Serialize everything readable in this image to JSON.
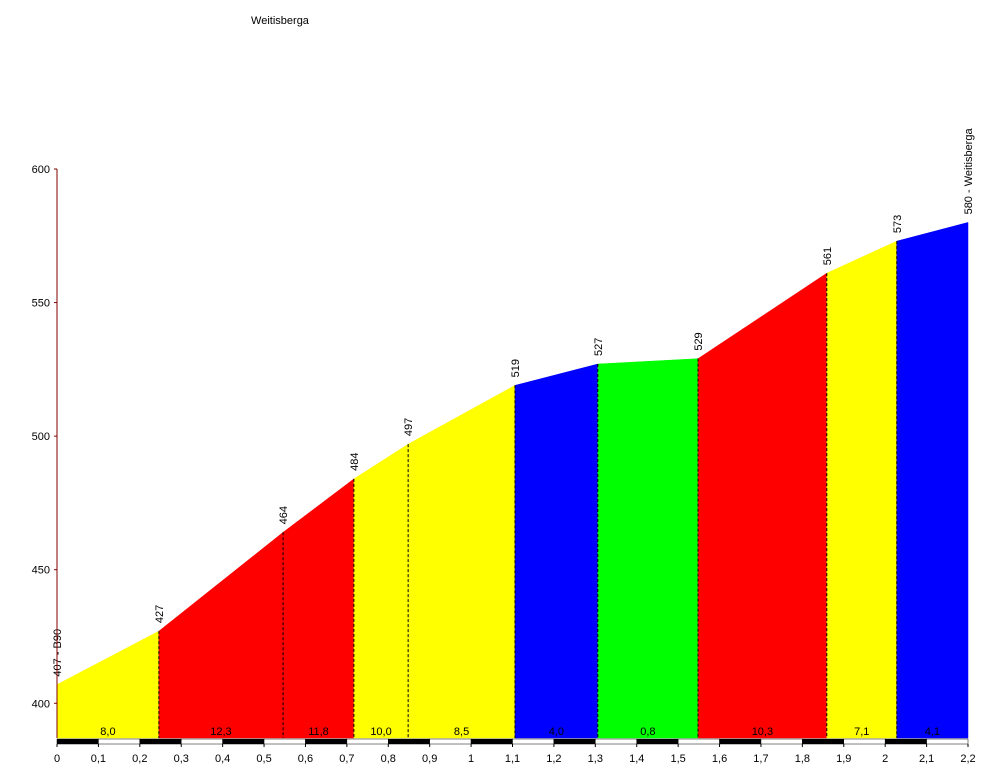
{
  "chart_data": {
    "type": "elevation-profile",
    "title": "Weitisberga",
    "x": [
      0,
      0.246,
      0.546,
      0.717,
      0.848,
      1.106,
      1.306,
      1.548,
      1.859,
      2.028,
      2.2
    ],
    "values": [
      407,
      427,
      464,
      484,
      497,
      519,
      527,
      529,
      561,
      573,
      580
    ],
    "value_labels": [
      "407 - B90",
      "427",
      "464",
      "484",
      "497",
      "519",
      "527",
      "529",
      "561",
      "573",
      "580 - Weitisberga"
    ],
    "segment_labels": [
      "8,0",
      "12,3",
      "11,8",
      "10,0",
      "8,5",
      "4,0",
      "0,8",
      "10,3",
      "7,1",
      "4,1"
    ],
    "segment_colors": [
      "#ffff00",
      "#ff0000",
      "#ff0000",
      "#ffff00",
      "#ffff00",
      "#0000ff",
      "#00ff00",
      "#ff0000",
      "#ffff00",
      "#0000ff"
    ],
    "xlim": [
      0,
      2.2
    ],
    "ylim": [
      387,
      600
    ],
    "xticks": [
      0,
      {
        "value": 0.1,
        "label": "0,1"
      },
      {
        "value": 0.2,
        "label": "0,2"
      },
      {
        "value": 0.3,
        "label": "0,3"
      },
      {
        "value": 0.4,
        "label": "0,4"
      },
      {
        "value": 0.5,
        "label": "0,5"
      },
      {
        "value": 0.6,
        "label": "0,6"
      },
      {
        "value": 0.7,
        "label": "0,7"
      },
      {
        "value": 0.8,
        "label": "0,8"
      },
      {
        "value": 0.9,
        "label": "0,9"
      },
      1,
      {
        "value": 1.1,
        "label": "1,1"
      },
      {
        "value": 1.2,
        "label": "1,2"
      },
      {
        "value": 1.3,
        "label": "1,3"
      },
      {
        "value": 1.4,
        "label": "1,4"
      },
      {
        "value": 1.5,
        "label": "1,5"
      },
      {
        "value": 1.6,
        "label": "1,6"
      },
      {
        "value": 1.7,
        "label": "1,7"
      },
      {
        "value": 1.8,
        "label": "1,8"
      },
      {
        "value": 1.9,
        "label": "1,9"
      },
      2,
      {
        "value": 2.1,
        "label": "2,1"
      },
      {
        "value": 2.2,
        "label": "2,2"
      }
    ],
    "yticks": [
      400,
      450,
      500,
      550,
      600
    ]
  }
}
